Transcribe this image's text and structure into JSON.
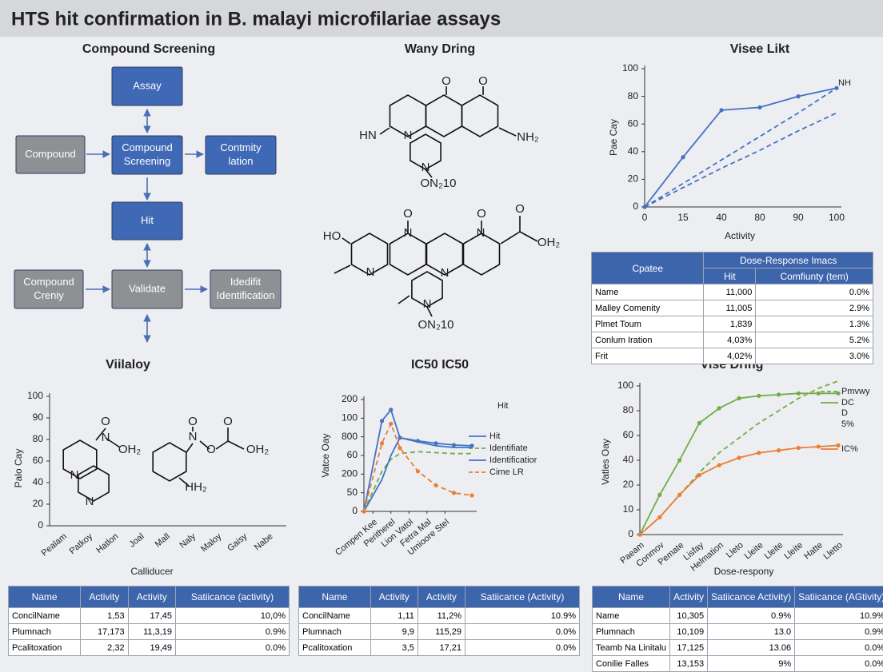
{
  "title": "HTS hit confirmation in B. malayi microfilariae assays",
  "flowchart": {
    "title": "Compound Screening",
    "nodes": [
      {
        "label": "Assay",
        "color": "#3f68b5"
      },
      {
        "label": "Compound",
        "color": "#8e9093"
      },
      {
        "label": "Compound Screening",
        "color": "#3f68b5"
      },
      {
        "label": "Contmity lation",
        "color": "#3f68b5"
      },
      {
        "label": "Hit",
        "color": "#3f68b5"
      },
      {
        "label": "Compound Creniy",
        "color": "#8e9093"
      },
      {
        "label": "Validate",
        "color": "#8e9093"
      },
      {
        "label": "Idedifit Identification",
        "color": "#8e9093"
      }
    ]
  },
  "structures": {
    "title": "Wany Dring",
    "molecules": [
      {
        "labels": [
          "O",
          "O",
          "HN",
          "NH₂",
          "N",
          "N",
          "ON₂10"
        ]
      },
      {
        "labels": [
          "O",
          "O",
          "O",
          "HO",
          "OH₂",
          "N",
          "N",
          "N",
          "N",
          "N",
          "ON₂10"
        ]
      },
      {
        "labels": [
          "O",
          "N",
          "OH₂",
          "N",
          "N",
          "O",
          "N",
          "O",
          "O",
          "OH₂",
          "HH₂"
        ]
      }
    ]
  },
  "chart_data": [
    {
      "type": "line",
      "title": "Visee Likt",
      "xlabel": "Activity",
      "ylabel": "Pae Cay",
      "categories": [
        "0",
        "15",
        "40",
        "80",
        "90",
        "100"
      ],
      "ylim": [
        0,
        100
      ],
      "yticks": [
        0,
        20,
        40,
        60,
        80,
        100
      ],
      "annotations": [
        "NH"
      ],
      "series": [
        {
          "color": "#4472c4",
          "markers": true,
          "values": [
            0,
            36,
            70,
            72,
            80,
            86
          ]
        },
        {
          "color": "#4472c4",
          "dash": true,
          "values": [
            0,
            17,
            34,
            51,
            68,
            86
          ]
        },
        {
          "color": "#4472c4",
          "dash": true,
          "values": [
            0,
            14,
            28,
            41,
            55,
            68
          ]
        }
      ]
    },
    {
      "type": "line",
      "title": "Viilaloy",
      "xlabel": "Calliducer",
      "ylabel": "Palo Cay",
      "categories": [
        "Pealam",
        "Patkoy",
        "Hatlon",
        "Joal",
        "Mall",
        "Naly",
        "Maloy",
        "Gaisy",
        "Nabe"
      ],
      "ylim": [
        0,
        6
      ],
      "yticks": [
        0,
        {
          "value": 1,
          "label": "20"
        },
        {
          "value": 2,
          "label": "40"
        },
        {
          "value": 3,
          "label": "60"
        },
        {
          "value": 4,
          "label": "80"
        },
        {
          "value": 5,
          "label": "90"
        },
        {
          "value": 6,
          "label": "100"
        }
      ],
      "series": []
    },
    {
      "type": "line",
      "title": "IC50 IC50",
      "ylabel": "Vatce Oay",
      "x": [
        0,
        1,
        1.5,
        2,
        3,
        4,
        5,
        6
      ],
      "xlim": [
        0,
        6
      ],
      "xticks": [
        {
          "value": 0.5,
          "label": "Compen Kee"
        },
        {
          "value": 1.5,
          "label": "Peritherel"
        },
        {
          "value": 2.5,
          "label": "Lion Vatol"
        },
        {
          "value": 3.5,
          "label": "Fetra Mal"
        },
        {
          "value": 4.5,
          "label": "Umioore Stel"
        }
      ],
      "ylim": [
        0,
        6
      ],
      "yticks": [
        0,
        {
          "value": 1,
          "label": "50"
        },
        {
          "value": 2,
          "label": "200"
        },
        {
          "value": 3,
          "label": "60"
        },
        {
          "value": 4,
          "label": "800"
        },
        {
          "value": 5,
          "label": "100"
        },
        {
          "value": 6,
          "label": "200"
        }
      ],
      "annotations": [
        "Hit"
      ],
      "series": [
        {
          "name": "Hit",
          "color": "#4472c4",
          "markers": true,
          "values": [
            0,
            4.85,
            5.45,
            3.95,
            3.78,
            3.65,
            3.56,
            3.52
          ]
        },
        {
          "name": "Identifiate",
          "color": "#70ad47",
          "dash": true,
          "values": [
            0,
            2.15,
            2.8,
            3.1,
            3.2,
            3.15,
            3.1,
            3.1
          ]
        },
        {
          "name": "Identificatior",
          "color": "#4472c4",
          "values": [
            0,
            1.7,
            3.0,
            3.95,
            3.73,
            3.52,
            3.43,
            3.43
          ]
        },
        {
          "name": "Cime LR",
          "color": "#ed7d31",
          "dash": true,
          "markers": true,
          "values": [
            0,
            3.65,
            4.7,
            3.4,
            2.15,
            1.4,
            0.99,
            0.86
          ]
        }
      ]
    },
    {
      "type": "line",
      "title": "Vise Dring",
      "xlabel": "Dose-respony",
      "ylabel": "Vatles Oay",
      "categories": [
        "Paeam",
        "Conmov",
        "Pemate",
        "Lisfay",
        "Helmation",
        "Lleto",
        "Lleite",
        "Lleite",
        "Lleite",
        "Hatte",
        "Lletto"
      ],
      "ylim": [
        0,
        6
      ],
      "yticks": [
        0,
        {
          "value": 1,
          "label": "10"
        },
        {
          "value": 2,
          "label": "20"
        },
        {
          "value": 3,
          "label": "40"
        },
        {
          "value": 4,
          "label": "60"
        },
        {
          "value": 5,
          "label": "80"
        },
        {
          "value": 6,
          "label": "100"
        }
      ],
      "annotations": [
        "D",
        "5%"
      ],
      "series": [
        {
          "name": "Pmvwy",
          "color": "#70ad47",
          "dash": true,
          "values": [
            0,
            0.7,
            1.6,
            2.5,
            3.3,
            3.9,
            4.5,
            5.0,
            5.5,
            5.9,
            6.2
          ]
        },
        {
          "name": "DC",
          "color": "#70ad47",
          "markers": true,
          "values": [
            0,
            1.6,
            3.0,
            4.5,
            5.1,
            5.5,
            5.6,
            5.65,
            5.7,
            5.7,
            5.7
          ]
        },
        {
          "name": "IC%",
          "color": "#ed7d31",
          "markers": true,
          "values": [
            0,
            0.7,
            1.6,
            2.4,
            2.8,
            3.1,
            3.3,
            3.4,
            3.5,
            3.55,
            3.6
          ]
        }
      ]
    }
  ],
  "tables": [
    {
      "corner": "Cpatee",
      "group": "Dose-Response Imacs",
      "columns": [
        "Hit",
        "Comfiunty (tem)"
      ],
      "rows": [
        [
          "Name",
          "11,000",
          "0.0%"
        ],
        [
          "Malley Comenity",
          "11,005",
          "2.9%"
        ],
        [
          "Plmet Toum",
          "1,839",
          "1.3%"
        ],
        [
          "Conlum Iration",
          "4,03%",
          "5.2%"
        ],
        [
          "Frit",
          "4,02%",
          "3.0%"
        ]
      ]
    },
    {
      "columns": [
        "Name",
        "Activity",
        "Activity",
        "Satiicance (activity)"
      ],
      "rows": [
        [
          "ConcilName",
          "1,53",
          "17,45",
          "10,0%"
        ],
        [
          "Plumnach",
          "17,173",
          "11,3,19",
          "0.9%"
        ],
        [
          "Pcalitoxation",
          "2,32",
          "19,49",
          "0.0%"
        ]
      ]
    },
    {
      "columns": [
        "Name",
        "Activity",
        "Activity",
        "Satiicance (Activity)"
      ],
      "rows": [
        [
          "ConcilName",
          "1,11",
          "11,2%",
          "10.9%"
        ],
        [
          "Plumnach",
          "9,9",
          "115,29",
          "0.0%"
        ],
        [
          "Pcalitoxation",
          "3,5",
          "17,21",
          "0.0%"
        ]
      ]
    },
    {
      "columns": [
        "Name",
        "Activity",
        "Satiicance Activity)",
        "Satiicance (AGtivity)"
      ],
      "rows": [
        [
          "Name",
          "10,305",
          "0.9%",
          "10.9%"
        ],
        [
          "Plumnach",
          "10,109",
          "13.0",
          "0.9%"
        ],
        [
          "Teamb Na Linitalu",
          "17,125",
          "13.06",
          "0.0%"
        ],
        [
          "Conilie Falles",
          "13,153",
          "9%",
          "0.0%"
        ]
      ]
    }
  ]
}
